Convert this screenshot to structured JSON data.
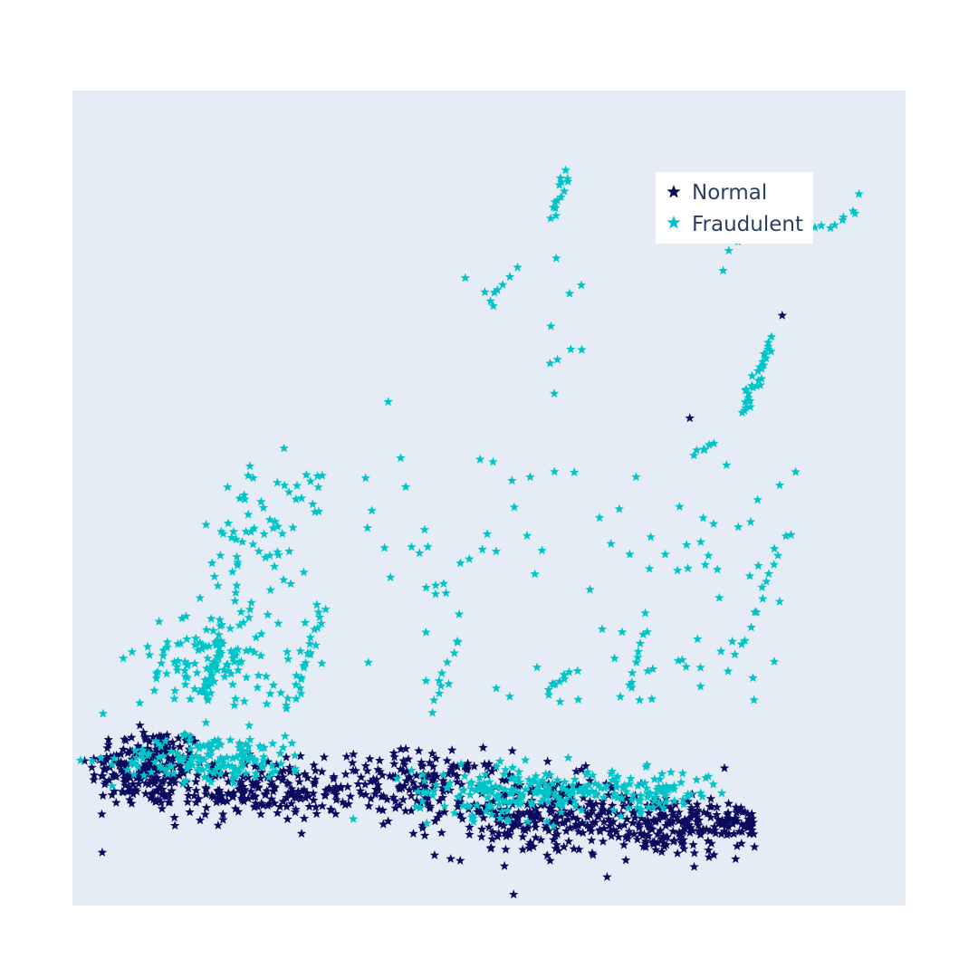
{
  "colors": {
    "background": "#ffffff",
    "plot_bg": "#e5ecf6",
    "normal": "#0b0b5e",
    "fraudulent": "#00c4c8",
    "legend_bg": "#ffffff",
    "legend_text": "#2a3f5f"
  },
  "marker_symbol": "star",
  "chart_data": {
    "type": "scatter",
    "title": "",
    "xlabel": "",
    "ylabel": "",
    "xlim": [
      0,
      1
    ],
    "ylim": [
      0,
      1
    ],
    "grid": false,
    "axes_visible": false,
    "legend": {
      "placement": "top-right",
      "entries": [
        "Normal",
        "Fraudulent"
      ]
    },
    "series": [
      {
        "name": "Normal",
        "color": "#0b0b5e",
        "clusters": [
          {
            "cx": 0.09,
            "cy": 0.17,
            "sx": 0.035,
            "sy": 0.025,
            "n": 220
          },
          {
            "cx": 0.22,
            "cy": 0.14,
            "sx": 0.06,
            "sy": 0.018,
            "n": 200
          },
          {
            "cx": 0.42,
            "cy": 0.15,
            "sx": 0.05,
            "sy": 0.02,
            "n": 150
          },
          {
            "cx": 0.56,
            "cy": 0.11,
            "sx": 0.06,
            "sy": 0.025,
            "n": 220
          },
          {
            "cx": 0.7,
            "cy": 0.1,
            "sx": 0.05,
            "sy": 0.02,
            "n": 180
          },
          {
            "cx": 0.79,
            "cy": 0.1,
            "sx": 0.02,
            "sy": 0.015,
            "n": 60
          }
        ],
        "points": [
          {
            "x": 0.852,
            "y": 0.724
          },
          {
            "x": 0.741,
            "y": 0.598
          },
          {
            "x": 0.081,
            "y": 0.221
          },
          {
            "x": 0.123,
            "y": 0.098
          },
          {
            "x": 0.796,
            "y": 0.057
          },
          {
            "x": 0.77,
            "y": 0.062
          },
          {
            "x": 0.733,
            "y": 0.075
          }
        ]
      },
      {
        "name": "Fraudulent",
        "color": "#00c4c8",
        "clusters": [
          {
            "cx": 0.17,
            "cy": 0.18,
            "sx": 0.06,
            "sy": 0.014,
            "n": 160
          },
          {
            "cx": 0.53,
            "cy": 0.14,
            "sx": 0.06,
            "sy": 0.016,
            "n": 170
          },
          {
            "cx": 0.68,
            "cy": 0.14,
            "sx": 0.05,
            "sy": 0.013,
            "n": 100
          },
          {
            "cx": 0.17,
            "cy": 0.3,
            "sx": 0.045,
            "sy": 0.035,
            "n": 120
          },
          {
            "cx": 0.22,
            "cy": 0.43,
            "sx": 0.04,
            "sy": 0.05,
            "n": 40
          }
        ],
        "segments": [
          {
            "x0": 0.16,
            "y0": 0.25,
            "x1": 0.18,
            "y1": 0.33,
            "n": 25
          },
          {
            "x0": 0.26,
            "y0": 0.24,
            "x1": 0.3,
            "y1": 0.36,
            "n": 25
          },
          {
            "x0": 0.43,
            "y0": 0.24,
            "x1": 0.46,
            "y1": 0.33,
            "n": 10
          },
          {
            "x0": 0.57,
            "y0": 0.26,
            "x1": 0.6,
            "y1": 0.29,
            "n": 10
          },
          {
            "x0": 0.66,
            "y0": 0.26,
            "x1": 0.69,
            "y1": 0.34,
            "n": 10
          },
          {
            "x0": 0.8,
            "y0": 0.31,
            "x1": 0.86,
            "y1": 0.46,
            "n": 15
          },
          {
            "x0": 0.804,
            "y0": 0.604,
            "x1": 0.838,
            "y1": 0.694,
            "n": 30
          },
          {
            "x0": 0.75,
            "y0": 0.55,
            "x1": 0.77,
            "y1": 0.57,
            "n": 6
          },
          {
            "x0": 0.575,
            "y0": 0.845,
            "x1": 0.595,
            "y1": 0.9,
            "n": 14
          },
          {
            "x0": 0.5,
            "y0": 0.74,
            "x1": 0.53,
            "y1": 0.78,
            "n": 6
          },
          {
            "x0": 0.785,
            "y0": 0.805,
            "x1": 0.815,
            "y1": 0.84,
            "n": 6
          },
          {
            "x0": 0.88,
            "y0": 0.828,
            "x1": 0.94,
            "y1": 0.844,
            "n": 8
          }
        ],
        "scatter_regions": [
          {
            "x0": 0.35,
            "x1": 0.85,
            "y0": 0.25,
            "y1": 0.55,
            "n": 90
          },
          {
            "x0": 0.46,
            "x1": 0.62,
            "y0": 0.6,
            "y1": 0.8,
            "n": 12
          },
          {
            "x0": 0.18,
            "x1": 0.3,
            "y0": 0.42,
            "y1": 0.54,
            "n": 30
          }
        ],
        "points": [
          {
            "x": 0.379,
            "y": 0.618
          },
          {
            "x": 0.254,
            "y": 0.561
          },
          {
            "x": 0.868,
            "y": 0.532
          },
          {
            "x": 0.944,
            "y": 0.873
          },
          {
            "x": 0.937,
            "y": 0.852
          },
          {
            "x": 0.781,
            "y": 0.779
          }
        ]
      }
    ]
  }
}
